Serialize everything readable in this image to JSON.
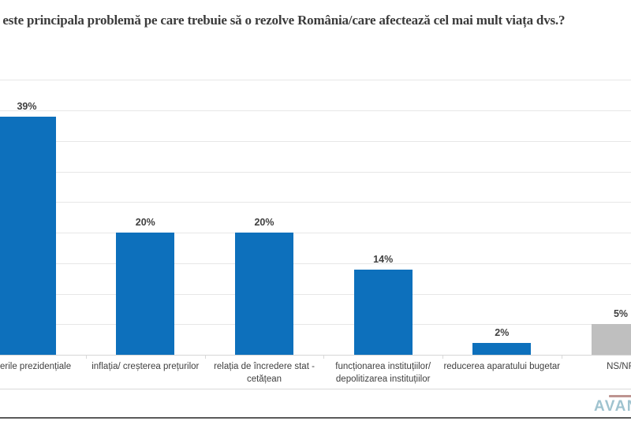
{
  "page": {
    "background": "#ffffff"
  },
  "chart_data": {
    "type": "bar",
    "title": "e este principala problemă pe care trebuie să o rezolve România/care afectează cel mai mult viața dvs.?",
    "title_note": "question text cut off at left edge of screenshot",
    "categories": [
      "erile  prezidențiale",
      "inflația/ creșterea prețurilor",
      "relația de încredere stat - cetățean",
      "funcționarea instituțiilor/ depolitizarea instituțiilor",
      "reducerea aparatului bugetar",
      "NS/NR"
    ],
    "values": [
      39,
      20,
      20,
      14,
      2,
      5
    ],
    "data_labels": [
      "39%",
      "20%",
      "20%",
      "14%",
      "2%",
      "5%"
    ],
    "bar_colors": [
      "#0d70bc",
      "#0d70bc",
      "#0d70bc",
      "#0d70bc",
      "#0d70bc",
      "#bfbfbf"
    ],
    "xlabel": "",
    "ylabel": "",
    "ylim": [
      0,
      45
    ],
    "gridline_step": 5,
    "grid": true,
    "legend_position": "none",
    "y_axis_tick_labels_visible": false,
    "accent_color": "#0d70bc",
    "neutral_bar_color": "#bfbfbf",
    "label_color": "#404040",
    "gridline_color": "#e7e7e7",
    "axis_color": "#d6d6d6"
  },
  "footer": {
    "logo_text": "AVAN",
    "logo_color": "#9fc3cf",
    "divider_color": "#dadada",
    "bottom_line_color": "#5a5a5a"
  }
}
